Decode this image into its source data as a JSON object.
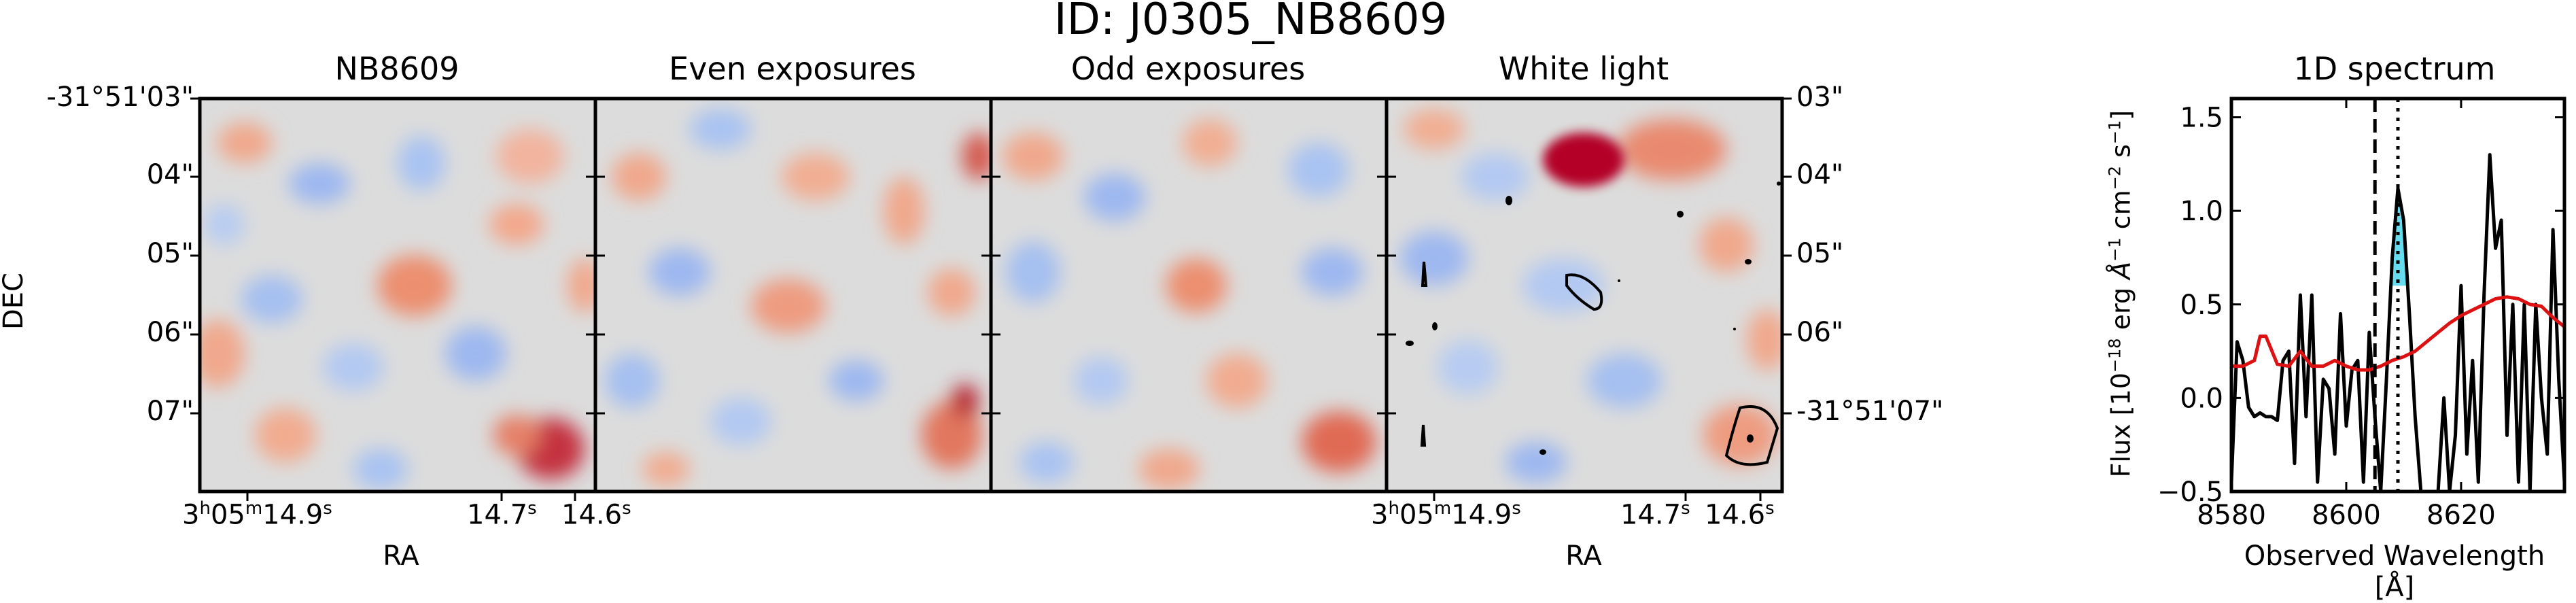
{
  "title": "ID: J0305_NB8609",
  "panels": [
    {
      "title": "NB8609"
    },
    {
      "title": "Even exposures"
    },
    {
      "title": "Odd exposures"
    },
    {
      "title": "White light"
    }
  ],
  "ylabel_dec": "DEC",
  "xlabel_ra": "RA",
  "dec_ticks_left": [
    "-31°51'03\"",
    "04\"",
    "05\"",
    "06\"",
    "07\""
  ],
  "dec_ticks_right": [
    "03\"",
    "04\"",
    "05\"",
    "06\"",
    "-31°51'07\""
  ],
  "ra_ticks": [
    {
      "h": "3",
      "m": "05",
      "s": "14.9",
      "unit_h": "h",
      "unit_m": "m",
      "unit_s": "s"
    },
    {
      "s": "14.7",
      "unit_s": "s"
    },
    {
      "s": "14.6",
      "unit_s": "s"
    }
  ],
  "colors": {
    "cmap_low": "#3b6fd9",
    "cmap_mid": "#dcdcdc",
    "cmap_high": "#b40426",
    "flux_line": "#000000",
    "noise_line": "#dd1111",
    "fill": "#66ddee"
  },
  "chart_data": {
    "type": "line",
    "title": "1D spectrum",
    "xlabel": "Observed Wavelength [Å]",
    "ylabel": "Flux [10^-18 erg Å^-1 cm^-2 s^-1]",
    "ylabel_parts": {
      "main": "Flux [10",
      "e1": "−18",
      "mid1": " erg ",
      "a": "Å",
      "e2": "−1",
      "mid2": " cm",
      "e3": "−2",
      "mid3": " s",
      "e4": "−1",
      "close": "]"
    },
    "xlim": [
      8580,
      8638
    ],
    "ylim": [
      -0.5,
      1.6
    ],
    "xticks": [
      8580,
      8600,
      8620
    ],
    "yticks": [
      -0.5,
      0.0,
      0.5,
      1.0,
      1.5
    ],
    "xtick_labels": [
      "8580",
      "8600",
      "8620"
    ],
    "ytick_labels": [
      "−0.5",
      "0.0",
      "0.5",
      "1.0",
      "1.5"
    ],
    "vlines": [
      {
        "x": 8605,
        "style": "dashed"
      },
      {
        "x": 8609,
        "style": "dotted"
      }
    ],
    "series": [
      {
        "x": [
          8580,
          8581,
          8582,
          8583,
          8584,
          8585,
          8586,
          8587,
          8588,
          8589,
          8590,
          8591,
          8592,
          8593,
          8594,
          8595,
          8596,
          8597,
          8598,
          8599,
          8600,
          8601,
          8602,
          8603,
          8604,
          8605,
          8606,
          8607,
          8608,
          8609,
          8610,
          8611,
          8612,
          8613,
          8614,
          8615,
          8616,
          8617,
          8618,
          8619,
          8620,
          8621,
          8622,
          8623,
          8624,
          8625,
          8626,
          8627,
          8628,
          8629,
          8630,
          8631,
          8632,
          8633,
          8634,
          8635,
          8636,
          8637,
          8638
        ],
        "values": [
          -0.45,
          0.3,
          0.2,
          -0.05,
          -0.1,
          -0.08,
          -0.1,
          -0.1,
          -0.12,
          0.2,
          0.25,
          -0.35,
          0.55,
          -0.1,
          0.55,
          -0.45,
          0.1,
          0.05,
          -0.3,
          0.45,
          -0.15,
          0.15,
          0.2,
          -0.45,
          0.35,
          -0.1,
          -0.5,
          0.1,
          0.75,
          1.12,
          0.95,
          0.45,
          -0.1,
          -0.5,
          -0.5,
          -0.5,
          -0.5,
          0.0,
          -0.5,
          -0.2,
          0.6,
          -0.3,
          0.2,
          -0.45,
          0.55,
          1.3,
          0.8,
          0.95,
          -0.2,
          0.5,
          -0.45,
          0.5,
          -0.5,
          0.5,
          0.0,
          -0.3,
          0.9,
          0.1,
          -0.45
        ]
      },
      {
        "x": [
          8580,
          8582,
          8584,
          8585,
          8586,
          8588,
          8590,
          8592,
          8594,
          8596,
          8598,
          8600,
          8602,
          8604,
          8606,
          8608,
          8610,
          8612,
          8614,
          8616,
          8618,
          8620,
          8622,
          8624,
          8626,
          8628,
          8630,
          8632,
          8634,
          8636,
          8638
        ],
        "values": [
          0.17,
          0.17,
          0.2,
          0.33,
          0.33,
          0.18,
          0.17,
          0.25,
          0.17,
          0.17,
          0.2,
          0.17,
          0.15,
          0.15,
          0.17,
          0.2,
          0.22,
          0.25,
          0.3,
          0.35,
          0.4,
          0.44,
          0.47,
          0.5,
          0.53,
          0.54,
          0.53,
          0.5,
          0.49,
          0.43,
          0.38
        ]
      }
    ]
  }
}
